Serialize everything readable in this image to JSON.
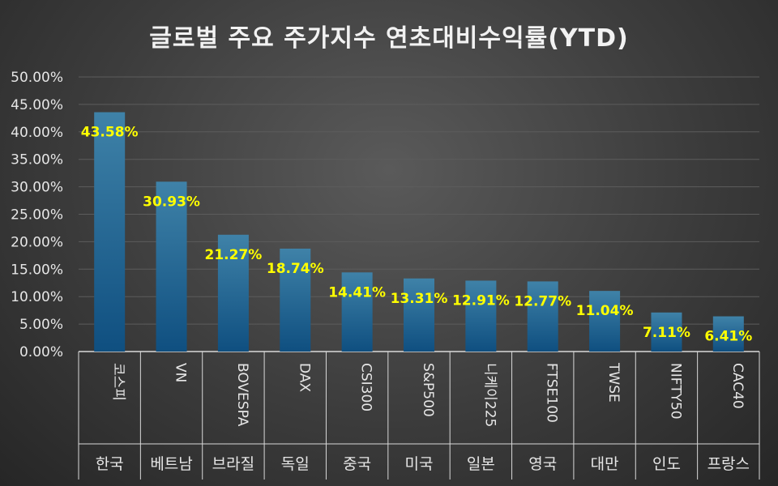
{
  "chart_data": {
    "type": "bar",
    "title": "글로벌 주요 주가지수 연초대비수익률(YTD)",
    "ylim": [
      0,
      50
    ],
    "y_ticks": [
      "0.00%",
      "5.00%",
      "10.00%",
      "15.00%",
      "20.00%",
      "25.00%",
      "30.00%",
      "35.00%",
      "40.00%",
      "45.00%",
      "50.00%"
    ],
    "categories": [
      "코스피",
      "VN",
      "BOVESPA",
      "DAX",
      "CSI300",
      "S&P500",
      "니케이225",
      "FTSE100",
      "TWSE",
      "NIFTY50",
      "CAC40"
    ],
    "groups": [
      "한국",
      "베트남",
      "브라질",
      "독일",
      "중국",
      "미국",
      "일본",
      "영국",
      "대만",
      "인도",
      "프랑스"
    ],
    "values": [
      43.58,
      30.93,
      21.27,
      18.74,
      14.41,
      13.31,
      12.91,
      12.77,
      11.04,
      7.11,
      6.41
    ],
    "value_labels": [
      "43.58%",
      "30.93%",
      "21.27%",
      "18.74%",
      "14.41%",
      "13.31%",
      "12.91%",
      "12.77%",
      "11.04%",
      "7.11%",
      "6.41%"
    ],
    "grid": true,
    "legend": "none",
    "colors": {
      "bar_top": "#3f82a8",
      "bar_bottom": "#0f4f80",
      "label": "#ffff00",
      "grid": "#5c5c5c"
    }
  }
}
